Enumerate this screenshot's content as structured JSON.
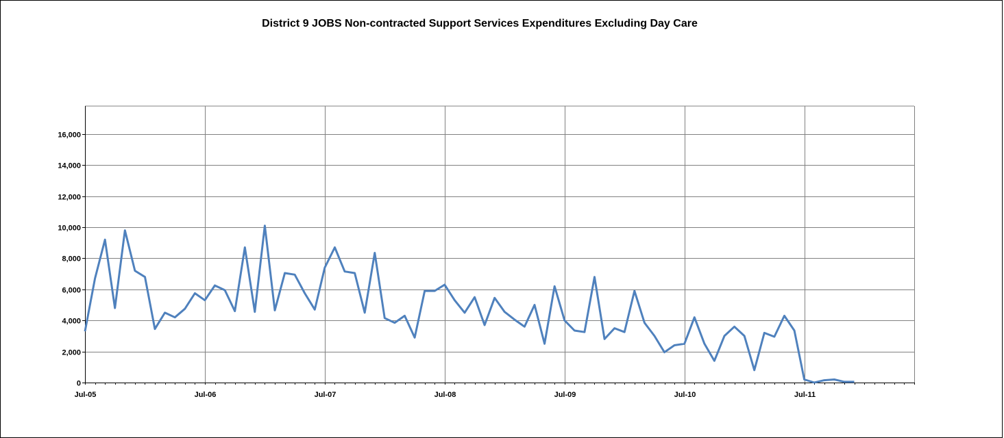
{
  "chart_data": {
    "type": "line",
    "title": "District 9 JOBS Non-contracted Support Services Expenditures Excluding Day Care",
    "xlabel": "",
    "ylabel": "",
    "ylim": [
      0,
      17800
    ],
    "yticks": [
      0,
      2000,
      4000,
      6000,
      8000,
      10000,
      12000,
      14000,
      16000
    ],
    "ytick_labels": [
      "0",
      "2,000",
      "4,000",
      "6,000",
      "8,000",
      "10,000",
      "12,000",
      "14,000",
      "16,000"
    ],
    "xtick_labels": [
      "Jul-05",
      "Jul-06",
      "Jul-07",
      "Jul-08",
      "Jul-09",
      "Jul-10",
      "Jul-11"
    ],
    "x_start": "Jul-05",
    "x_step": "month",
    "grid": true,
    "series_color": "#4f81bd",
    "values": [
      3300,
      6700,
      9200,
      4800,
      9800,
      7200,
      6800,
      3450,
      4500,
      4200,
      4750,
      5750,
      5300,
      6250,
      5950,
      4600,
      8700,
      4550,
      10100,
      4650,
      7050,
      6950,
      5750,
      4700,
      7400,
      8700,
      7150,
      7050,
      4500,
      8350,
      4150,
      3850,
      4300,
      2900,
      5900,
      5900,
      6300,
      5300,
      4500,
      5500,
      3700,
      5450,
      4550,
      4050,
      3600,
      5000,
      2500,
      6200,
      4000,
      3350,
      3250,
      6800,
      2800,
      3500,
      3250,
      5900,
      3850,
      3000,
      1950,
      2400,
      2500,
      4200,
      2500,
      1400,
      3000,
      3600,
      3000,
      800,
      3200,
      2950,
      4300,
      3350,
      200,
      0,
      150,
      200,
      50,
      50
    ]
  }
}
